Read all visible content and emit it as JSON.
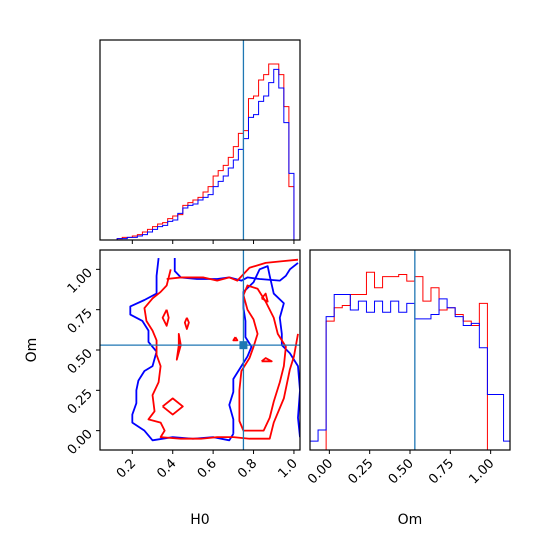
{
  "chart_data": [
    {
      "type": "step-histogram",
      "panel": "H0 marginal",
      "bin_edges": [
        0.1,
        0.125,
        0.15,
        0.175,
        0.2,
        0.225,
        0.25,
        0.275,
        0.3,
        0.325,
        0.35,
        0.375,
        0.4,
        0.425,
        0.45,
        0.475,
        0.5,
        0.525,
        0.55,
        0.575,
        0.6,
        0.625,
        0.65,
        0.675,
        0.7,
        0.725,
        0.75,
        0.775,
        0.8,
        0.825,
        0.85,
        0.875,
        0.9,
        0.925,
        0.95,
        0.975,
        1.0
      ],
      "series": [
        {
          "color": "#ff0000",
          "values": [
            0,
            0.5,
            1,
            1,
            1.5,
            2,
            3,
            4,
            5,
            6,
            6.5,
            8,
            9,
            9.5,
            13,
            14,
            15,
            16,
            18,
            20,
            24,
            26,
            28,
            31,
            35,
            40,
            41,
            53,
            54,
            60,
            62,
            66,
            66,
            62,
            50,
            20
          ]
        },
        {
          "color": "#0000ff",
          "values": [
            0,
            0.5,
            0.5,
            1,
            1,
            1.5,
            2,
            3,
            4,
            5,
            5.5,
            7,
            7.5,
            10,
            12,
            13,
            13.5,
            15,
            16,
            17,
            20,
            22,
            24,
            27,
            30,
            34,
            38,
            46,
            47,
            52,
            54,
            59,
            64,
            57,
            44,
            25
          ]
        }
      ],
      "truth": 0.75,
      "xlim": [
        0.04,
        1.03
      ],
      "ylim": [
        0,
        75
      ]
    },
    {
      "type": "contour",
      "panel": "H0 vs Om",
      "xlabel": "H0",
      "ylabel": "Om",
      "xticks": [
        "0.2",
        "0.4",
        "0.6",
        "0.8",
        "1.0"
      ],
      "yticks": [
        "0.00",
        "0.25",
        "0.50",
        "0.75",
        "1.00"
      ],
      "xlim": [
        0.04,
        1.03
      ],
      "ylim": [
        -0.12,
        1.12
      ],
      "truth": {
        "x": 0.75,
        "y": 0.53
      },
      "series": [
        {
          "color": "#0000ff",
          "contours": [
            [
              [
                0.33,
                1.07
              ],
              [
                0.32,
                0.96
              ],
              [
                0.32,
                0.85
              ],
              [
                0.26,
                0.81
              ],
              [
                0.19,
                0.77
              ],
              [
                0.19,
                0.72
              ],
              [
                0.25,
                0.68
              ],
              [
                0.28,
                0.62
              ],
              [
                0.28,
                0.55
              ],
              [
                0.32,
                0.49
              ],
              [
                0.3,
                0.4
              ],
              [
                0.26,
                0.37
              ],
              [
                0.23,
                0.31
              ],
              [
                0.22,
                0.25
              ],
              [
                0.22,
                0.17
              ],
              [
                0.2,
                0.1
              ],
              [
                0.2,
                0.05
              ],
              [
                0.26,
                0.0
              ],
              [
                0.3,
                -0.06
              ],
              [
                0.4,
                -0.04
              ],
              [
                0.5,
                -0.05
              ],
              [
                0.6,
                -0.04
              ],
              [
                0.68,
                -0.06
              ],
              [
                0.7,
                -0.02
              ]
            ],
            [
              [
                0.7,
                -0.02
              ],
              [
                0.7,
                0.07
              ],
              [
                0.68,
                0.16
              ],
              [
                0.7,
                0.24
              ],
              [
                0.7,
                0.32
              ],
              [
                0.74,
                0.4
              ],
              [
                0.77,
                0.46
              ],
              [
                0.79,
                0.52
              ],
              [
                0.76,
                0.58
              ],
              [
                0.76,
                0.68
              ],
              [
                0.75,
                0.76
              ],
              [
                0.75,
                0.86
              ],
              [
                0.8,
                0.92
              ],
              [
                0.83,
                1.0
              ],
              [
                0.87,
                1.02
              ],
              [
                0.88,
                0.96
              ],
              [
                0.9,
                0.85
              ],
              [
                0.95,
                0.79
              ],
              [
                0.93,
                0.7
              ],
              [
                0.94,
                0.6
              ],
              [
                0.94,
                0.53
              ],
              [
                0.98,
                0.48
              ],
              [
                1.02,
                0.4
              ],
              [
                1.03,
                0.25
              ],
              [
                1.02,
                0.08
              ],
              [
                1.03,
                -0.04
              ]
            ],
            [
              [
                0.41,
                1.07
              ],
              [
                0.41,
                0.99
              ],
              [
                0.44,
                0.95
              ],
              [
                0.52,
                0.94
              ],
              [
                0.62,
                0.94
              ],
              [
                0.68,
                0.95
              ],
              [
                0.74,
                0.93
              ],
              [
                0.77,
                0.95
              ],
              [
                0.83,
                0.94
              ],
              [
                0.93,
                0.93
              ],
              [
                0.96,
                0.96
              ],
              [
                0.98,
                1.0
              ],
              [
                1.02,
                1.04
              ]
            ]
          ]
        },
        {
          "color": "#ff0000",
          "contours": [
            [
              [
                0.39,
                1.0
              ],
              [
                0.37,
                0.9
              ],
              [
                0.34,
                0.86
              ],
              [
                0.3,
                0.82
              ],
              [
                0.26,
                0.76
              ],
              [
                0.27,
                0.68
              ],
              [
                0.3,
                0.62
              ],
              [
                0.32,
                0.56
              ],
              [
                0.32,
                0.47
              ],
              [
                0.34,
                0.4
              ],
              [
                0.33,
                0.3
              ],
              [
                0.3,
                0.22
              ],
              [
                0.31,
                0.12
              ],
              [
                0.28,
                0.07
              ],
              [
                0.34,
                0.05
              ],
              [
                0.36,
                0.0
              ],
              [
                0.34,
                -0.04
              ],
              [
                0.44,
                -0.05
              ],
              [
                0.54,
                -0.05
              ],
              [
                0.62,
                -0.04
              ],
              [
                0.7,
                -0.04
              ],
              [
                0.78,
                -0.05
              ],
              [
                0.88,
                -0.05
              ],
              [
                0.9,
                0.05
              ],
              [
                0.95,
                0.2
              ],
              [
                0.98,
                0.38
              ],
              [
                1.0,
                0.46
              ],
              [
                1.02,
                0.6
              ]
            ],
            [
              [
                0.75,
                0.84
              ],
              [
                0.77,
                0.75
              ],
              [
                0.8,
                0.69
              ],
              [
                0.82,
                0.6
              ],
              [
                0.8,
                0.52
              ],
              [
                0.78,
                0.45
              ],
              [
                0.74,
                0.37
              ],
              [
                0.73,
                0.25
              ],
              [
                0.73,
                0.15
              ],
              [
                0.73,
                0.06
              ],
              [
                0.75,
                0.0
              ],
              [
                0.85,
                0.0
              ],
              [
                0.88,
                0.08
              ],
              [
                0.9,
                0.18
              ],
              [
                0.93,
                0.3
              ],
              [
                0.95,
                0.4
              ],
              [
                0.96,
                0.52
              ],
              [
                0.92,
                0.6
              ],
              [
                0.9,
                0.7
              ],
              [
                0.86,
                0.8
              ],
              [
                0.82,
                0.88
              ],
              [
                0.77,
                0.9
              ],
              [
                0.75,
                0.84
              ]
            ],
            [
              [
                0.37,
                0.94
              ],
              [
                0.44,
                0.95
              ],
              [
                0.55,
                0.95
              ],
              [
                0.62,
                0.93
              ],
              [
                0.68,
                0.95
              ],
              [
                0.72,
                0.93
              ],
              [
                0.78,
                1.01
              ],
              [
                0.86,
                1.04
              ],
              [
                0.94,
                1.05
              ],
              [
                1.02,
                1.06
              ]
            ],
            [
              [
                0.35,
                0.15
              ],
              [
                0.4,
                0.2
              ],
              [
                0.45,
                0.15
              ],
              [
                0.4,
                0.1
              ],
              [
                0.35,
                0.15
              ]
            ],
            [
              [
                0.43,
                0.53
              ],
              [
                0.42,
                0.44
              ],
              [
                0.44,
                0.53
              ],
              [
                0.43,
                0.6
              ],
              [
                0.43,
                0.53
              ]
            ],
            [
              [
                0.37,
                0.75
              ],
              [
                0.35,
                0.7
              ],
              [
                0.37,
                0.65
              ],
              [
                0.38,
                0.7
              ],
              [
                0.37,
                0.75
              ]
            ],
            [
              [
                0.84,
                0.43
              ],
              [
                0.86,
                0.45
              ],
              [
                0.89,
                0.43
              ],
              [
                0.84,
                0.43
              ]
            ],
            [
              [
                0.47,
                0.7
              ],
              [
                0.46,
                0.67
              ],
              [
                0.47,
                0.63
              ],
              [
                0.48,
                0.67
              ],
              [
                0.47,
                0.7
              ]
            ],
            [
              [
                0.71,
                0.58
              ],
              [
                0.7,
                0.56
              ],
              [
                0.72,
                0.56
              ],
              [
                0.71,
                0.58
              ]
            ],
            [
              [
                0.84,
                0.82
              ],
              [
                0.86,
                0.85
              ],
              [
                0.87,
                0.8
              ],
              [
                0.84,
                0.82
              ]
            ]
          ]
        }
      ]
    },
    {
      "type": "step-histogram",
      "panel": "Om marginal",
      "xlabel": "Om",
      "xticks": [
        "0.00",
        "0.25",
        "0.50",
        "0.75",
        "1.00"
      ],
      "bin_edges": [
        -0.12,
        -0.07,
        -0.02,
        0.03,
        0.08,
        0.13,
        0.18,
        0.23,
        0.28,
        0.33,
        0.38,
        0.43,
        0.48,
        0.53,
        0.58,
        0.63,
        0.68,
        0.73,
        0.78,
        0.83,
        0.88,
        0.93,
        0.98,
        1.03,
        1.08,
        1.12
      ],
      "series": [
        {
          "color": "#ff0000",
          "values": [
            0,
            0,
            58,
            64,
            65,
            70,
            70,
            80,
            73,
            78,
            78,
            79,
            76,
            78,
            67,
            73,
            63,
            64,
            61,
            58,
            56,
            66,
            0,
            0,
            0
          ]
        },
        {
          "color": "#0000ff",
          "values": [
            4,
            9,
            60,
            70,
            70,
            63,
            67,
            62,
            67,
            62,
            67,
            62,
            66,
            59,
            59,
            61,
            68,
            64,
            60,
            56,
            57,
            46,
            25,
            25,
            4
          ]
        }
      ],
      "truth": 0.53,
      "xlim": [
        -0.12,
        1.12
      ],
      "ylim": [
        0,
        90
      ]
    }
  ]
}
